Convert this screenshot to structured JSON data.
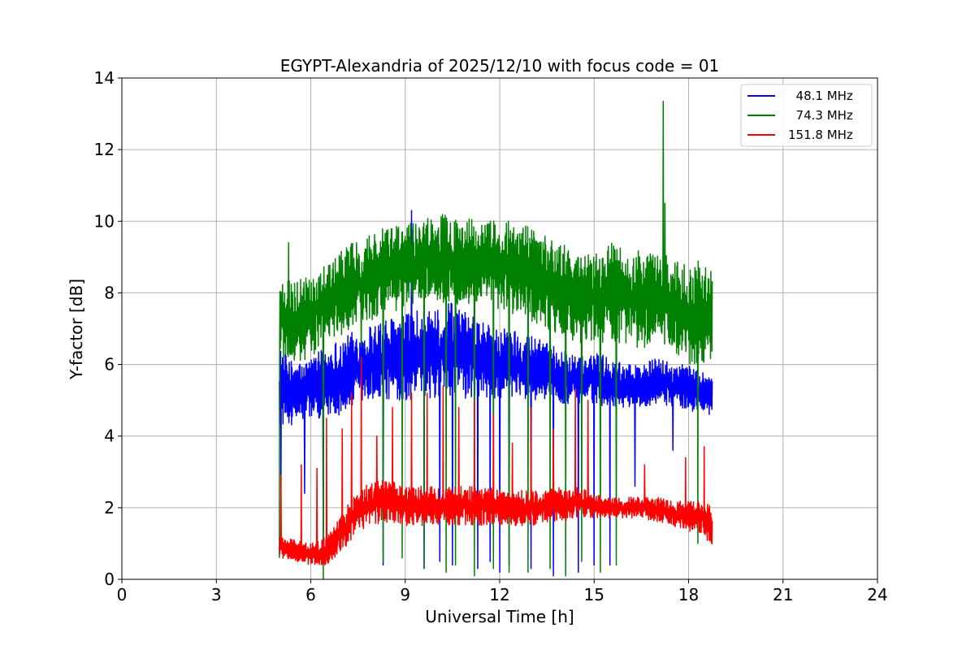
{
  "chart_data": {
    "type": "line",
    "title": "EGYPT-Alexandria of 2025/12/10 with focus code = 01",
    "xlabel": "Universal Time [h]",
    "ylabel": "Y-factor [dB]",
    "xlim": [
      0,
      24
    ],
    "ylim": [
      0,
      14
    ],
    "xticks": [
      0,
      3,
      6,
      9,
      12,
      15,
      18,
      21,
      24
    ],
    "yticks": [
      0,
      2,
      4,
      6,
      8,
      10,
      12,
      14
    ],
    "xtick_labels": [
      "0",
      "3",
      "6",
      "9",
      "12",
      "15",
      "18",
      "21",
      "24"
    ],
    "ytick_labels": [
      "0",
      "2",
      "4",
      "6",
      "8",
      "10",
      "12",
      "14"
    ],
    "grid": true,
    "legend_position": "top-right",
    "time_range": [
      5.0,
      18.75
    ],
    "series": [
      {
        "name": "48.1 MHz",
        "legend_label": "  48.1 MHz",
        "color": "#0000ff",
        "x": [
          5.0,
          5.5,
          6.0,
          6.5,
          7.0,
          7.5,
          8.0,
          8.5,
          9.0,
          9.5,
          10.0,
          10.5,
          11.0,
          11.5,
          12.0,
          12.5,
          13.0,
          13.5,
          14.0,
          14.5,
          15.0,
          15.5,
          16.0,
          16.5,
          17.0,
          17.5,
          18.0,
          18.5,
          18.75
        ],
        "low": [
          4.3,
          4.3,
          4.5,
          4.5,
          4.6,
          4.8,
          4.9,
          5.0,
          5.0,
          5.0,
          5.0,
          5.0,
          5.0,
          5.0,
          5.0,
          5.0,
          5.0,
          5.0,
          4.9,
          4.9,
          4.9,
          4.8,
          4.8,
          4.8,
          4.9,
          4.8,
          4.7,
          4.6,
          4.4
        ],
        "high": [
          6.5,
          6.0,
          6.2,
          6.5,
          6.8,
          7.0,
          7.2,
          7.3,
          7.4,
          7.6,
          7.5,
          7.8,
          7.4,
          7.2,
          7.0,
          7.0,
          6.8,
          6.6,
          6.4,
          6.2,
          6.4,
          6.2,
          6.0,
          6.0,
          6.2,
          6.0,
          6.0,
          5.8,
          5.8
        ],
        "spikes": [
          [
            5.05,
            2.6
          ],
          [
            5.8,
            2.4
          ],
          [
            6.4,
            0.5
          ],
          [
            8.3,
            0.4
          ],
          [
            9.2,
            10.3
          ],
          [
            9.6,
            0.3
          ],
          [
            10.1,
            0.5
          ],
          [
            10.5,
            0.4
          ],
          [
            11.3,
            0.3
          ],
          [
            11.7,
            0.5
          ],
          [
            12.0,
            0.2
          ],
          [
            12.3,
            0.4
          ],
          [
            13.0,
            0.3
          ],
          [
            13.7,
            0.1
          ],
          [
            14.5,
            0.2
          ],
          [
            15.0,
            0.4
          ],
          [
            15.5,
            0.4
          ],
          [
            16.3,
            2.6
          ],
          [
            17.5,
            3.6
          ]
        ]
      },
      {
        "name": "74.3 MHz",
        "legend_label": "  74.3 MHz",
        "color": "#008000",
        "x": [
          5.0,
          5.5,
          6.0,
          6.5,
          7.0,
          7.5,
          8.0,
          8.5,
          9.0,
          9.5,
          10.0,
          10.5,
          11.0,
          11.5,
          12.0,
          12.5,
          13.0,
          13.5,
          14.0,
          14.5,
          15.0,
          15.5,
          16.0,
          16.5,
          17.0,
          17.5,
          18.0,
          18.5,
          18.75
        ],
        "low": [
          6.2,
          6.0,
          6.2,
          6.6,
          6.8,
          7.0,
          7.2,
          7.4,
          7.6,
          7.8,
          7.8,
          7.6,
          7.6,
          7.6,
          7.4,
          7.4,
          7.2,
          7.0,
          6.8,
          6.6,
          6.6,
          6.6,
          6.6,
          6.4,
          6.6,
          6.2,
          6.0,
          6.0,
          6.2
        ],
        "high": [
          8.3,
          8.4,
          8.6,
          8.8,
          9.2,
          9.5,
          9.8,
          9.8,
          10.0,
          10.0,
          10.2,
          10.2,
          10.1,
          10.0,
          10.1,
          10.0,
          9.8,
          9.6,
          9.4,
          9.0,
          9.2,
          9.4,
          9.3,
          9.2,
          9.1,
          9.0,
          8.8,
          9.0,
          8.6
        ],
        "spikes": [
          [
            5.0,
            0.6
          ],
          [
            5.3,
            9.4
          ],
          [
            6.4,
            0.0
          ],
          [
            7.6,
            6.5
          ],
          [
            8.3,
            0.5
          ],
          [
            8.9,
            0.6
          ],
          [
            9.6,
            0.3
          ],
          [
            10.3,
            0.2
          ],
          [
            10.6,
            0.4
          ],
          [
            11.2,
            0.1
          ],
          [
            11.8,
            0.3
          ],
          [
            12.3,
            0.2
          ],
          [
            12.9,
            0.2
          ],
          [
            13.6,
            0.3
          ],
          [
            14.1,
            0.1
          ],
          [
            14.6,
            0.5
          ],
          [
            15.2,
            0.2
          ],
          [
            15.7,
            0.4
          ],
          [
            17.2,
            13.35
          ],
          [
            17.25,
            10.5
          ],
          [
            18.3,
            1.0
          ]
        ]
      },
      {
        "name": "151.8 MHz",
        "legend_label": "151.8 MHz",
        "color": "#ff0000",
        "x": [
          5.0,
          5.5,
          6.0,
          6.5,
          7.0,
          7.5,
          8.0,
          8.5,
          9.0,
          9.5,
          10.0,
          10.5,
          11.0,
          11.5,
          12.0,
          12.5,
          13.0,
          13.5,
          14.0,
          14.5,
          15.0,
          15.5,
          16.0,
          16.5,
          17.0,
          17.5,
          18.0,
          18.5,
          18.75
        ],
        "low": [
          0.6,
          0.5,
          0.4,
          0.4,
          0.8,
          1.3,
          1.5,
          1.6,
          1.5,
          1.5,
          1.5,
          1.5,
          1.5,
          1.5,
          1.5,
          1.5,
          1.5,
          1.6,
          1.6,
          1.7,
          1.7,
          1.7,
          1.7,
          1.7,
          1.6,
          1.5,
          1.3,
          1.2,
          0.8
        ],
        "high": [
          1.2,
          1.1,
          1.0,
          1.2,
          1.8,
          2.6,
          2.8,
          2.8,
          2.6,
          2.6,
          2.6,
          2.6,
          2.6,
          2.6,
          2.5,
          2.5,
          2.5,
          2.5,
          2.6,
          2.6,
          2.4,
          2.3,
          2.3,
          2.3,
          2.3,
          2.2,
          2.2,
          2.2,
          2.0
        ],
        "spikes": [
          [
            5.05,
            2.9
          ],
          [
            5.7,
            3.2
          ],
          [
            6.2,
            3.1
          ],
          [
            6.5,
            4.5
          ],
          [
            7.0,
            4.2
          ],
          [
            7.3,
            5.2
          ],
          [
            7.6,
            6.2
          ],
          [
            8.1,
            4.0
          ],
          [
            8.6,
            4.8
          ],
          [
            9.2,
            5.2
          ],
          [
            9.7,
            5.2
          ],
          [
            10.2,
            5.4
          ],
          [
            10.7,
            4.8
          ],
          [
            11.2,
            5.0
          ],
          [
            11.8,
            4.6
          ],
          [
            12.4,
            3.8
          ],
          [
            13.0,
            4.8
          ],
          [
            13.7,
            4.2
          ],
          [
            14.4,
            5.3
          ],
          [
            14.8,
            5.0
          ],
          [
            16.6,
            3.2
          ],
          [
            17.9,
            3.4
          ],
          [
            18.5,
            3.7
          ]
        ]
      }
    ]
  }
}
